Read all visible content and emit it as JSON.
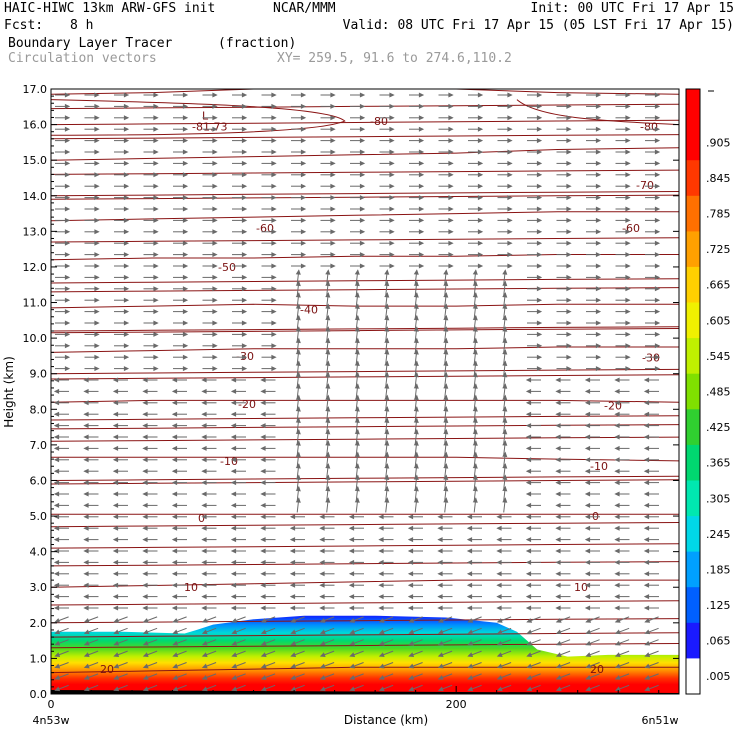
{
  "header": {
    "model": "HAIC-HIWC 13km ARW-GFS init",
    "org": "NCAR/MMM",
    "init": "Init: 00 UTC Fri 17 Apr 15",
    "fcst_label": "Fcst:",
    "fcst_value": "8 h",
    "valid": "Valid: 08 UTC Fri 17 Apr 15 (05 LST Fri 17 Apr 15)",
    "field": "Boundary Layer Tracer",
    "field_units": "(fraction)",
    "overlay": "Circulation vectors",
    "xy": "XY= 259.5, 91.6 to 274.6,110.2"
  },
  "chart_data": {
    "type": "heatmap",
    "ylabel": "Height (km)",
    "xlabel": "Distance (km)",
    "ylim": [
      0,
      17
    ],
    "xlim": [
      0,
      310
    ],
    "y_ticks": [
      "0.0",
      "1.0",
      "2.0",
      "3.0",
      "4.0",
      "5.0",
      "6.0",
      "7.0",
      "8.0",
      "9.0",
      "10.0",
      "11.0",
      "12.0",
      "13.0",
      "14.0",
      "15.0",
      "16.0",
      "17.0"
    ],
    "x_ticks": [
      {
        "value": 0,
        "label": "0"
      },
      {
        "value": 200,
        "label": "200"
      }
    ],
    "x_endpoints": {
      "left": "4n53w",
      "right": "6n51w"
    },
    "tracer_top_km": [
      [
        0,
        1.75
      ],
      [
        35,
        1.75
      ],
      [
        66,
        1.7
      ],
      [
        72,
        1.8
      ],
      [
        80,
        1.95
      ],
      [
        100,
        2.1
      ],
      [
        125,
        2.2
      ],
      [
        160,
        2.2
      ],
      [
        195,
        2.15
      ],
      [
        220,
        2.0
      ],
      [
        230,
        1.75
      ],
      [
        240,
        1.25
      ],
      [
        255,
        1.05
      ],
      [
        275,
        1.1
      ],
      [
        290,
        1.1
      ],
      [
        310,
        1.1
      ]
    ],
    "contours": [
      {
        "value": -80,
        "label": "-80"
      },
      {
        "value": -70,
        "label": "-70"
      },
      {
        "value": -60,
        "label": "-60"
      },
      {
        "value": -50,
        "label": "-50"
      },
      {
        "value": -40,
        "label": "-40"
      },
      {
        "value": -30,
        "label": "-30"
      },
      {
        "value": -20,
        "label": "-20"
      },
      {
        "value": -10,
        "label": "-10"
      },
      {
        "value": 0,
        "label": "0"
      },
      {
        "value": 10,
        "label": "10"
      },
      {
        "value": 20,
        "label": "20"
      }
    ],
    "low_marker": {
      "symbol": "L",
      "label": "-81.73"
    },
    "colorbar": {
      "labels": [
        ".005",
        ".065",
        ".125",
        ".185",
        ".245",
        ".305",
        ".365",
        ".425",
        ".485",
        ".545",
        ".605",
        ".665",
        ".725",
        ".785",
        ".845",
        ".905"
      ],
      "colors": [
        "#ffffff",
        "#1a1aff",
        "#0060ff",
        "#00a0ff",
        "#00d8e8",
        "#00e8b0",
        "#00d870",
        "#30d030",
        "#80e000",
        "#c0f000",
        "#f0f000",
        "#ffd000",
        "#ffa000",
        "#ff7000",
        "#ff3800",
        "#ff0000",
        "#ff0000"
      ]
    }
  }
}
